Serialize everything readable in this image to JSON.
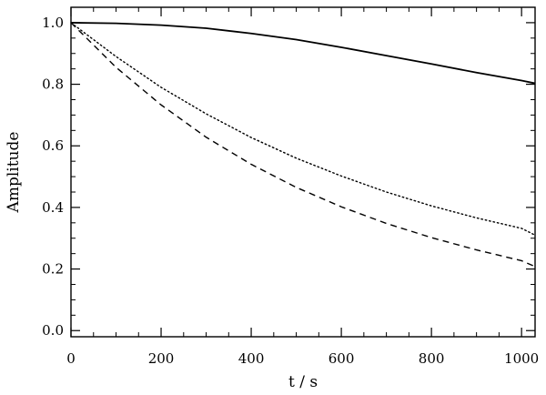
{
  "chart_data": {
    "type": "line",
    "title": "",
    "xlabel": "t / s",
    "ylabel": "Amplitude",
    "xlim": [
      0,
      1030
    ],
    "ylim": [
      -0.02,
      1.05
    ],
    "xticks": [
      0,
      200,
      400,
      600,
      800,
      1000
    ],
    "xtick_labels": [
      "0",
      "200",
      "400",
      "600",
      "800",
      "1000"
    ],
    "yticks": [
      0.0,
      0.2,
      0.4,
      0.6,
      0.8,
      1.0
    ],
    "ytick_labels": [
      "0.0",
      "0.2",
      "0.4",
      "0.6",
      "0.8",
      "1.0"
    ],
    "grid": false,
    "series": [
      {
        "style": "solid",
        "color": "#000000",
        "x": [
          0,
          100,
          200,
          300,
          400,
          500,
          600,
          700,
          800,
          900,
          1000,
          1030
        ],
        "y": [
          1.0,
          0.998,
          0.992,
          0.982,
          0.965,
          0.945,
          0.92,
          0.893,
          0.866,
          0.838,
          0.812,
          0.803
        ]
      },
      {
        "style": "dotted",
        "color": "#000000",
        "x": [
          0,
          100,
          200,
          300,
          400,
          500,
          600,
          700,
          800,
          900,
          1000,
          1030
        ],
        "y": [
          1.0,
          0.89,
          0.79,
          0.704,
          0.627,
          0.56,
          0.502,
          0.45,
          0.405,
          0.366,
          0.332,
          0.31
        ]
      },
      {
        "style": "dashed",
        "color": "#000000",
        "x": [
          0,
          100,
          200,
          300,
          400,
          500,
          600,
          700,
          800,
          900,
          1000,
          1030
        ],
        "y": [
          1.0,
          0.855,
          0.733,
          0.628,
          0.54,
          0.465,
          0.402,
          0.348,
          0.302,
          0.262,
          0.227,
          0.208
        ]
      }
    ]
  }
}
